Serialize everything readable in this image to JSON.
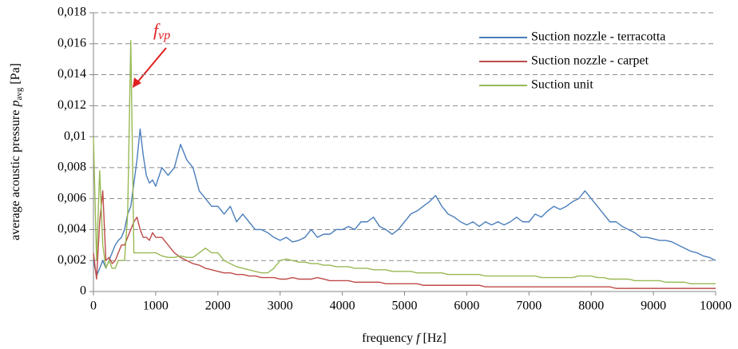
{
  "chart_data": {
    "type": "line",
    "ylabel": {
      "text": "average acoustic pressure",
      "symbol": "p",
      "subscript": "avg",
      "unit": "[Pa]"
    },
    "xlabel": {
      "text": "frequency",
      "symbol": "f",
      "unit": "[Hz]"
    },
    "annotation": {
      "text": "f",
      "subscript": "vp"
    },
    "legend": "top-right",
    "grid": true,
    "xlim": [
      0,
      10000
    ],
    "xticks": [
      0,
      1000,
      2000,
      3000,
      4000,
      5000,
      6000,
      7000,
      8000,
      9000,
      10000
    ],
    "ylim": [
      0,
      0.018
    ],
    "yticks": [
      0,
      {
        "value": 0.002,
        "label": "0,002"
      },
      {
        "value": 0.004,
        "label": "0,004"
      },
      {
        "value": 0.006,
        "label": "0,006"
      },
      {
        "value": 0.008,
        "label": "0,008"
      },
      {
        "value": 0.01,
        "label": "0,01"
      },
      {
        "value": 0.012,
        "label": "0,012"
      },
      {
        "value": 0.014,
        "label": "0,014"
      },
      {
        "value": 0.016,
        "label": "0,016"
      },
      {
        "value": 0.018,
        "label": "0,018"
      }
    ],
    "x": [
      0,
      50,
      100,
      150,
      200,
      250,
      300,
      350,
      400,
      450,
      500,
      550,
      600,
      650,
      700,
      750,
      800,
      850,
      900,
      950,
      1000,
      1100,
      1200,
      1300,
      1400,
      1500,
      1600,
      1700,
      1800,
      1900,
      2000,
      2100,
      2200,
      2300,
      2400,
      2500,
      2600,
      2700,
      2800,
      2900,
      3000,
      3100,
      3200,
      3300,
      3400,
      3500,
      3600,
      3700,
      3800,
      3900,
      4000,
      4100,
      4200,
      4300,
      4400,
      4500,
      4600,
      4700,
      4800,
      4900,
      5000,
      5100,
      5200,
      5300,
      5400,
      5500,
      5600,
      5700,
      5800,
      5900,
      6000,
      6100,
      6200,
      6300,
      6400,
      6500,
      6600,
      6700,
      6800,
      6900,
      7000,
      7100,
      7200,
      7300,
      7400,
      7500,
      7600,
      7700,
      7800,
      7900,
      8000,
      8100,
      8200,
      8300,
      8400,
      8500,
      8600,
      8700,
      8800,
      8900,
      9000,
      9100,
      9200,
      9300,
      9400,
      9500,
      9600,
      9700,
      9800,
      9900,
      10000
    ],
    "series": [
      {
        "name": "Suction nozzle - terracotta",
        "color": "#4a7ebb",
        "values": [
          0.002,
          0.001,
          0.0015,
          0.002,
          0.0015,
          0.002,
          0.0025,
          0.003,
          0.0033,
          0.0035,
          0.004,
          0.005,
          0.0055,
          0.007,
          0.0085,
          0.0105,
          0.0088,
          0.0075,
          0.007,
          0.0072,
          0.0068,
          0.008,
          0.0075,
          0.008,
          0.0095,
          0.0085,
          0.008,
          0.0065,
          0.006,
          0.0055,
          0.0055,
          0.005,
          0.0055,
          0.0045,
          0.005,
          0.0045,
          0.004,
          0.004,
          0.0038,
          0.0035,
          0.0033,
          0.0035,
          0.0032,
          0.0033,
          0.0035,
          0.004,
          0.0035,
          0.0037,
          0.0037,
          0.004,
          0.004,
          0.0042,
          0.004,
          0.0045,
          0.0045,
          0.0048,
          0.0042,
          0.004,
          0.0037,
          0.004,
          0.0045,
          0.005,
          0.0052,
          0.0055,
          0.0058,
          0.0062,
          0.0055,
          0.005,
          0.0048,
          0.0045,
          0.0043,
          0.0045,
          0.0042,
          0.0045,
          0.0043,
          0.0045,
          0.0043,
          0.0045,
          0.0048,
          0.0045,
          0.0045,
          0.005,
          0.0048,
          0.0052,
          0.0055,
          0.0053,
          0.0055,
          0.0058,
          0.006,
          0.0065,
          0.006,
          0.0055,
          0.005,
          0.0045,
          0.0045,
          0.0042,
          0.004,
          0.0038,
          0.0035,
          0.0035,
          0.0034,
          0.0033,
          0.0033,
          0.0032,
          0.003,
          0.0028,
          0.0026,
          0.0025,
          0.0023,
          0.0022,
          0.002
        ]
      },
      {
        "name": "Suction nozzle - carpet",
        "color": "#be4b48",
        "values": [
          0.0025,
          0.0008,
          0.0045,
          0.0065,
          0.002,
          0.0022,
          0.0018,
          0.002,
          0.0025,
          0.003,
          0.003,
          0.0035,
          0.004,
          0.0045,
          0.0048,
          0.004,
          0.0035,
          0.0035,
          0.0033,
          0.0038,
          0.0035,
          0.0035,
          0.003,
          0.0025,
          0.0022,
          0.002,
          0.0018,
          0.0017,
          0.0015,
          0.0014,
          0.0013,
          0.0012,
          0.0012,
          0.0011,
          0.0011,
          0.001,
          0.001,
          0.0009,
          0.0009,
          0.0009,
          0.0008,
          0.0008,
          0.0009,
          0.0008,
          0.0008,
          0.0008,
          0.0009,
          0.0008,
          0.0007,
          0.0007,
          0.0007,
          0.0007,
          0.0006,
          0.0006,
          0.0006,
          0.0006,
          0.0006,
          0.0005,
          0.0005,
          0.0005,
          0.0005,
          0.0005,
          0.0005,
          0.0004,
          0.0004,
          0.0004,
          0.0004,
          0.0004,
          0.0004,
          0.0004,
          0.0004,
          0.0004,
          0.0004,
          0.0003,
          0.0003,
          0.0003,
          0.0003,
          0.0003,
          0.0003,
          0.0003,
          0.0003,
          0.0003,
          0.0003,
          0.0003,
          0.0003,
          0.0003,
          0.0003,
          0.0003,
          0.0003,
          0.0003,
          0.0003,
          0.0003,
          0.0003,
          0.0003,
          0.0002,
          0.0002,
          0.0002,
          0.0002,
          0.0002,
          0.0002,
          0.0002,
          0.0002,
          0.0002,
          0.0002,
          0.0002,
          0.0002,
          0.0002,
          0.0002,
          0.0002,
          0.0002,
          0.0002
        ]
      },
      {
        "name": "Suction unit",
        "color": "#98b954",
        "values": [
          0.01,
          0.002,
          0.0078,
          0.003,
          0.0015,
          0.002,
          0.0015,
          0.0015,
          0.002,
          0.002,
          0.002,
          0.005,
          0.0162,
          0.0025,
          0.0025,
          0.0025,
          0.0025,
          0.0025,
          0.0025,
          0.0025,
          0.0025,
          0.0023,
          0.0022,
          0.0022,
          0.0023,
          0.0022,
          0.0022,
          0.0025,
          0.0028,
          0.0025,
          0.0025,
          0.002,
          0.0018,
          0.0016,
          0.0015,
          0.0014,
          0.0013,
          0.0012,
          0.0012,
          0.0015,
          0.002,
          0.0021,
          0.002,
          0.0019,
          0.0019,
          0.0018,
          0.0018,
          0.0017,
          0.0017,
          0.0016,
          0.0016,
          0.0016,
          0.0015,
          0.0015,
          0.0015,
          0.0014,
          0.0014,
          0.0014,
          0.0013,
          0.0013,
          0.0013,
          0.0013,
          0.0012,
          0.0012,
          0.0012,
          0.0012,
          0.0012,
          0.0011,
          0.0011,
          0.0011,
          0.0011,
          0.0011,
          0.0011,
          0.001,
          0.001,
          0.001,
          0.001,
          0.001,
          0.001,
          0.001,
          0.001,
          0.001,
          0.0009,
          0.0009,
          0.0009,
          0.0009,
          0.0009,
          0.0009,
          0.001,
          0.001,
          0.001,
          0.0009,
          0.0009,
          0.0008,
          0.0008,
          0.0008,
          0.0008,
          0.0007,
          0.0007,
          0.0007,
          0.0007,
          0.0007,
          0.0006,
          0.0006,
          0.0006,
          0.0006,
          0.0005,
          0.0005,
          0.0005,
          0.0005,
          0.0005
        ]
      }
    ]
  }
}
